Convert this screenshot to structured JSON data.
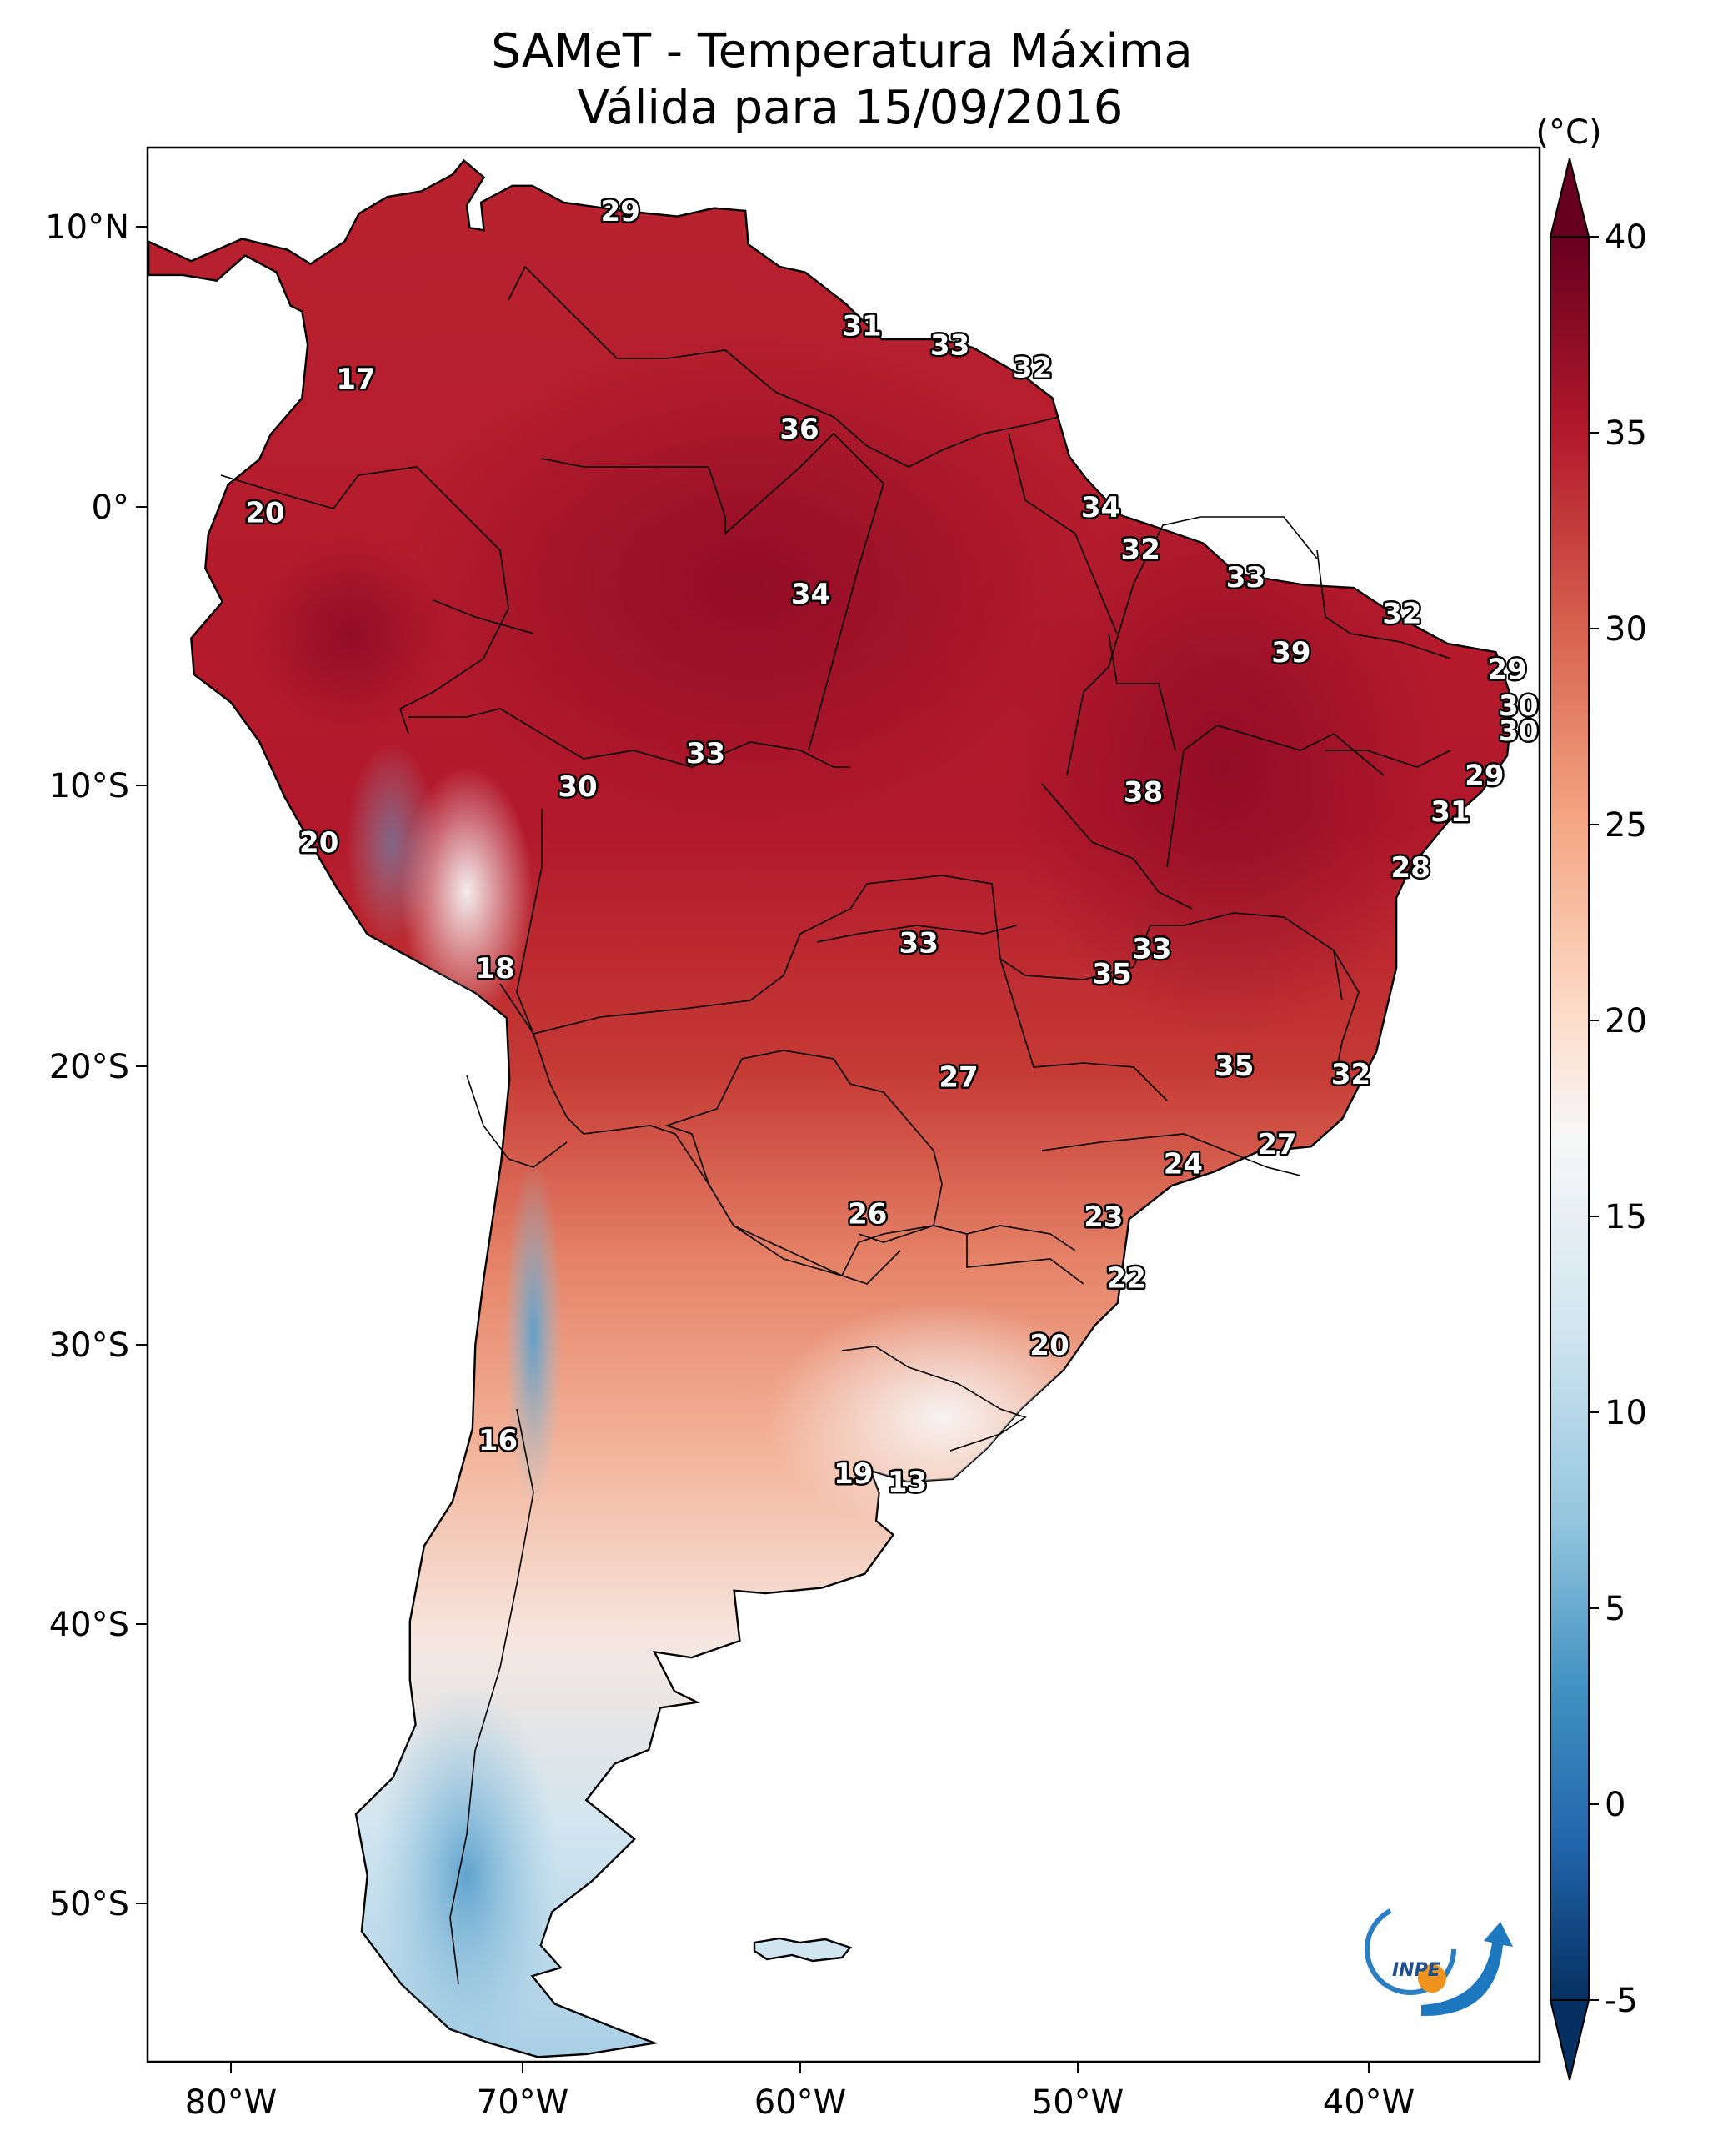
{
  "title": {
    "line1": "SAMeT - Temperatura Máxima",
    "line2": "Válida para 15/09/2016"
  },
  "colorbar": {
    "unit": "(°C)",
    "ticks": [
      "40",
      "35",
      "30",
      "25",
      "20",
      "15",
      "10",
      "5",
      "0",
      "-5"
    ],
    "min": -5,
    "max": 40,
    "colors": {
      "c40": "#67001f",
      "c35": "#b2182b",
      "c30": "#d6604d",
      "c25": "#f4a582",
      "c20": "#fddbc7",
      "c17": "#f7f7f7",
      "c12": "#d1e5f0",
      "c7": "#92c5de",
      "c3": "#4393c3",
      "c0": "#2166ac",
      "cm5": "#053061"
    }
  },
  "axes": {
    "lat_labels": [
      "10°N",
      "0°",
      "10°S",
      "20°S",
      "30°S",
      "40°S",
      "50°S"
    ],
    "lon_labels": [
      "80°W",
      "70°W",
      "60°W",
      "50°W",
      "40°W"
    ]
  },
  "logo": {
    "text": "INPE"
  },
  "chart_data": {
    "type": "heatmap",
    "title": "SAMeT - Temperatura Máxima Válida para 15/09/2016",
    "variable": "Temperatura Máxima",
    "unit": "°C",
    "date": "15/09/2016",
    "colorbar_range": [
      -5,
      40
    ],
    "lon_range": [
      -83,
      -33
    ],
    "lat_range": [
      -57,
      13
    ],
    "station_values": [
      {
        "value": "29",
        "lon": -66.3,
        "lat": 10.6
      },
      {
        "value": "31",
        "lon": -57.8,
        "lat": 6.5
      },
      {
        "value": "33",
        "lon": -54.7,
        "lat": 5.8
      },
      {
        "value": "32",
        "lon": -51.8,
        "lat": 5.0
      },
      {
        "value": "17",
        "lon": -75.6,
        "lat": 4.6
      },
      {
        "value": "36",
        "lon": -60.0,
        "lat": 2.8
      },
      {
        "value": "20",
        "lon": -78.8,
        "lat": -0.2
      },
      {
        "value": "34",
        "lon": -49.4,
        "lat": 0.0
      },
      {
        "value": "32",
        "lon": -48.0,
        "lat": -1.5
      },
      {
        "value": "33",
        "lon": -44.3,
        "lat": -2.5
      },
      {
        "value": "34",
        "lon": -59.6,
        "lat": -3.1
      },
      {
        "value": "32",
        "lon": -38.8,
        "lat": -3.8
      },
      {
        "value": "39",
        "lon": -42.7,
        "lat": -5.2
      },
      {
        "value": "29",
        "lon": -35.1,
        "lat": -5.8
      },
      {
        "value": "30",
        "lon": -34.7,
        "lat": -7.1
      },
      {
        "value": "30",
        "lon": -34.7,
        "lat": -8.0
      },
      {
        "value": "33",
        "lon": -63.3,
        "lat": -8.8
      },
      {
        "value": "29",
        "lon": -35.9,
        "lat": -9.6
      },
      {
        "value": "30",
        "lon": -67.8,
        "lat": -10.0
      },
      {
        "value": "38",
        "lon": -47.9,
        "lat": -10.2
      },
      {
        "value": "31",
        "lon": -37.1,
        "lat": -10.9
      },
      {
        "value": "20",
        "lon": -76.9,
        "lat": -12.0
      },
      {
        "value": "28",
        "lon": -38.5,
        "lat": -12.9
      },
      {
        "value": "33",
        "lon": -55.8,
        "lat": -15.6
      },
      {
        "value": "33",
        "lon": -47.6,
        "lat": -15.8
      },
      {
        "value": "18",
        "lon": -70.7,
        "lat": -16.5
      },
      {
        "value": "35",
        "lon": -49.0,
        "lat": -16.7
      },
      {
        "value": "35",
        "lon": -44.7,
        "lat": -20.0
      },
      {
        "value": "32",
        "lon": -40.6,
        "lat": -20.3
      },
      {
        "value": "27",
        "lon": -54.4,
        "lat": -20.4
      },
      {
        "value": "27",
        "lon": -43.2,
        "lat": -22.8
      },
      {
        "value": "24",
        "lon": -46.5,
        "lat": -23.5
      },
      {
        "value": "26",
        "lon": -57.6,
        "lat": -25.3
      },
      {
        "value": "23",
        "lon": -49.3,
        "lat": -25.4
      },
      {
        "value": "22",
        "lon": -48.5,
        "lat": -27.6
      },
      {
        "value": "20",
        "lon": -51.2,
        "lat": -30.0
      },
      {
        "value": "16",
        "lon": -70.6,
        "lat": -33.4
      },
      {
        "value": "19",
        "lon": -58.1,
        "lat": -34.6
      },
      {
        "value": "13",
        "lon": -56.2,
        "lat": -34.9
      }
    ]
  }
}
